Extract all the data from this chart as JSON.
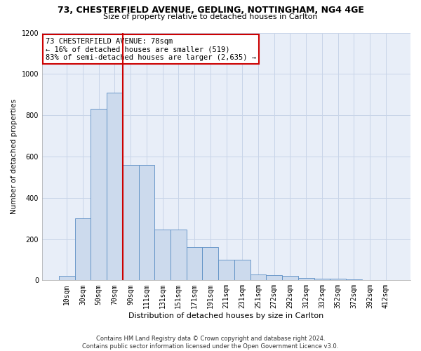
{
  "title_line1": "73, CHESTERFIELD AVENUE, GEDLING, NOTTINGHAM, NG4 4GE",
  "title_line2": "Size of property relative to detached houses in Carlton",
  "xlabel": "Distribution of detached houses by size in Carlton",
  "ylabel": "Number of detached properties",
  "footnote": "Contains HM Land Registry data © Crown copyright and database right 2024.\nContains public sector information licensed under the Open Government Licence v3.0.",
  "bar_labels": [
    "10sqm",
    "30sqm",
    "50sqm",
    "70sqm",
    "90sqm",
    "111sqm",
    "131sqm",
    "151sqm",
    "171sqm",
    "191sqm",
    "211sqm",
    "231sqm",
    "251sqm",
    "272sqm",
    "292sqm",
    "312sqm",
    "332sqm",
    "352sqm",
    "372sqm",
    "392sqm",
    "412sqm"
  ],
  "bar_values": [
    20,
    300,
    830,
    910,
    560,
    560,
    245,
    245,
    160,
    160,
    100,
    100,
    30,
    25,
    20,
    10,
    8,
    8,
    5,
    0,
    0
  ],
  "bar_color": "#ccdaed",
  "bar_edge_color": "#5b8ec4",
  "vline_x": 3.5,
  "annotation_text": "73 CHESTERFIELD AVENUE: 78sqm\n← 16% of detached houses are smaller (519)\n83% of semi-detached houses are larger (2,635) →",
  "vline_color": "#cc0000",
  "annotation_box_color": "#ffffff",
  "annotation_box_edge_color": "#cc0000",
  "ylim": [
    0,
    1200
  ],
  "yticks": [
    0,
    200,
    400,
    600,
    800,
    1000,
    1200
  ],
  "background_color": "#ffffff",
  "grid_color": "#c8d4e8",
  "title_fontsize": 9,
  "subtitle_fontsize": 8,
  "xlabel_fontsize": 8,
  "ylabel_fontsize": 7.5,
  "tick_fontsize": 7,
  "annotation_fontsize": 7.5,
  "footnote_fontsize": 6
}
